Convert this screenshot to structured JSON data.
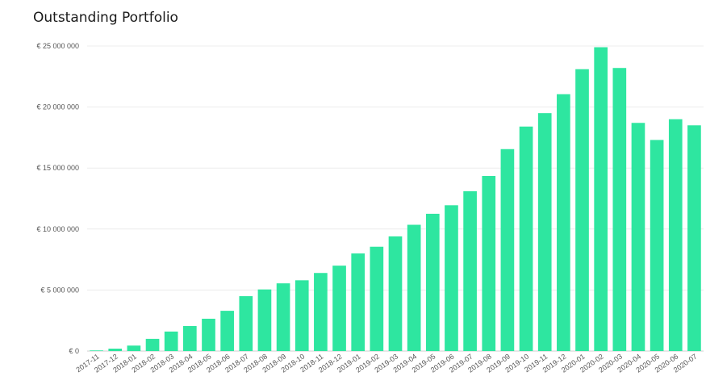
{
  "chart_data": {
    "type": "bar",
    "title": "Outstanding Portfolio",
    "xlabel": "",
    "ylabel": "",
    "bar_color": "#2ee6a0",
    "grid": true,
    "ylim": [
      0,
      25000000
    ],
    "yticks": [
      0,
      5000000,
      10000000,
      15000000,
      20000000,
      25000000
    ],
    "ytick_labels": [
      "€ 0",
      "€ 5 000 000",
      "€ 10 000 000",
      "€ 15 000 000",
      "€ 20 000 000",
      "€ 25 000 000"
    ],
    "categories": [
      "2017-11",
      "2017-12",
      "2018-01",
      "2018-02",
      "2018-03",
      "2018-04",
      "2018-05",
      "2018-06",
      "2018-07",
      "2018-08",
      "2018-09",
      "2018-10",
      "2018-11",
      "2018-12",
      "2019-01",
      "2019-02",
      "2019-03",
      "2019-04",
      "2019-05",
      "2019-06",
      "2019-07",
      "2019-08",
      "2019-09",
      "2019-10",
      "2019-11",
      "2019-12",
      "2020-01",
      "2020-02",
      "2020-03",
      "2020-04",
      "2020-05",
      "2020-06",
      "2020-07"
    ],
    "values": [
      50000,
      200000,
      450000,
      1000000,
      1600000,
      2050000,
      2650000,
      3300000,
      4500000,
      5050000,
      5550000,
      5800000,
      6400000,
      7000000,
      8000000,
      8550000,
      9400000,
      10350000,
      11250000,
      11950000,
      13100000,
      14350000,
      16550000,
      18400000,
      19500000,
      21050000,
      23100000,
      24900000,
      23200000,
      18700000,
      17300000,
      19000000,
      18500000
    ]
  }
}
